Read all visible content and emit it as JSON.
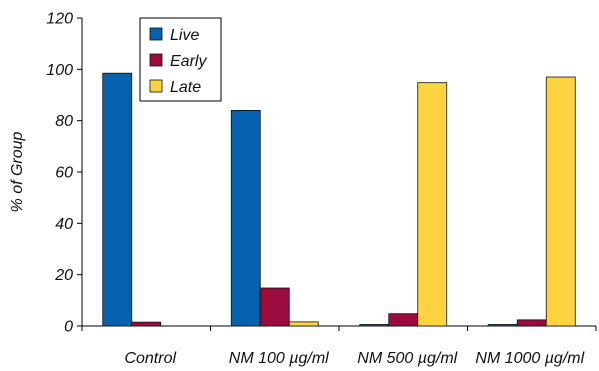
{
  "chart_data": {
    "type": "bar",
    "categories": [
      "Control",
      "NM 100 µg/ml",
      "NM 500 µg/ml",
      "NM 1000 µg/ml"
    ],
    "series": [
      {
        "name": "Live",
        "color": "#0560ae",
        "values": [
          98.5,
          84,
          0.6,
          0.6
        ]
      },
      {
        "name": "Early",
        "color": "#9a0b3e",
        "values": [
          1.5,
          14.8,
          4.8,
          2.4
        ]
      },
      {
        "name": "Late",
        "color": "#ffd23f",
        "values": [
          0,
          1.6,
          94.8,
          97
        ]
      }
    ],
    "title": "",
    "xlabel": "",
    "ylabel": "% of Group",
    "ylim": [
      0,
      120
    ],
    "yticks": [
      0,
      20,
      40,
      60,
      80,
      100,
      120
    ],
    "grid": false,
    "legend": "top-left"
  }
}
